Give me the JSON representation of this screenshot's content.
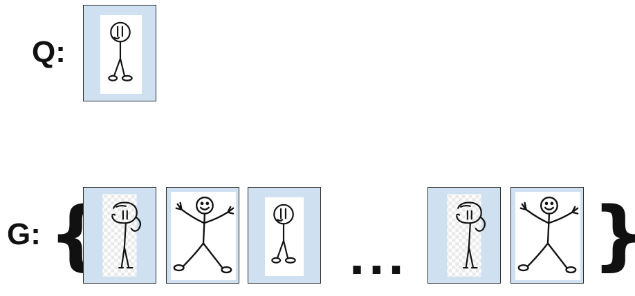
{
  "query": {
    "label": "Q:",
    "image": {
      "figure": "stick-figure-standing",
      "background": "plain-white"
    }
  },
  "gallery": {
    "label": "G:",
    "open_brace": "{",
    "close_brace": "}",
    "ellipsis": "...",
    "images": [
      {
        "figure": "stick-figure-side-profile",
        "background": "checkerboard"
      },
      {
        "figure": "stick-figure-arms-up-smiling",
        "background": "plain-white"
      },
      {
        "figure": "stick-figure-standing",
        "background": "plain-white"
      },
      {
        "figure": "stick-figure-side-profile",
        "background": "checkerboard"
      },
      {
        "figure": "stick-figure-arms-up-smiling",
        "background": "plain-white"
      }
    ]
  },
  "colors": {
    "card_background": "#cfe1f1",
    "card_border": "#2a2a2a",
    "text": "#111111"
  }
}
